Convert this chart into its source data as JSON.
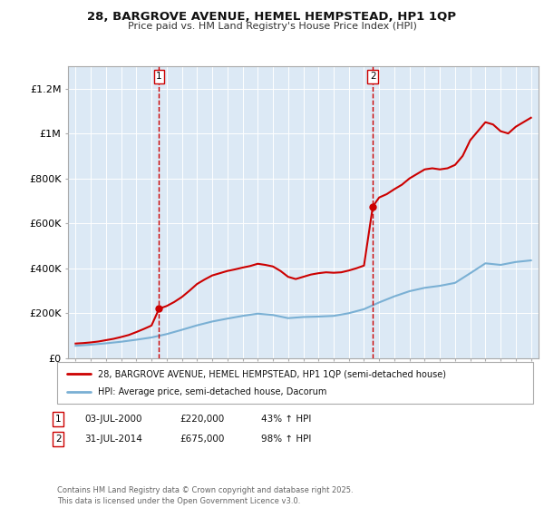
{
  "title": "28, BARGROVE AVENUE, HEMEL HEMPSTEAD, HP1 1QP",
  "subtitle": "Price paid vs. HM Land Registry's House Price Index (HPI)",
  "legend_line1": "28, BARGROVE AVENUE, HEMEL HEMPSTEAD, HP1 1QP (semi-detached house)",
  "legend_line2": "HPI: Average price, semi-detached house, Dacorum",
  "transaction1_date": 2000.5,
  "transaction1_price": 220000,
  "transaction1_label": "1",
  "transaction1_text1": "03-JUL-2000",
  "transaction1_text2": "£220,000",
  "transaction1_text3": "43% ↑ HPI",
  "transaction2_date": 2014.58,
  "transaction2_price": 675000,
  "transaction2_label": "2",
  "transaction2_text1": "31-JUL-2014",
  "transaction2_text2": "£675,000",
  "transaction2_text3": "98% ↑ HPI",
  "plot_bg": "#dce9f5",
  "red_line_color": "#cc0000",
  "blue_line_color": "#7ab0d4",
  "dashed_line_color": "#cc0000",
  "footer": "Contains HM Land Registry data © Crown copyright and database right 2025.\nThis data is licensed under the Open Government Licence v3.0.",
  "xlim": [
    1994.5,
    2025.5
  ],
  "ylim": [
    0,
    1300000
  ],
  "yticks": [
    0,
    200000,
    400000,
    600000,
    800000,
    1000000,
    1200000
  ],
  "ytick_labels": [
    "£0",
    "£200K",
    "£400K",
    "£600K",
    "£800K",
    "£1M",
    "£1.2M"
  ],
  "xticks": [
    1995,
    1996,
    1997,
    1998,
    1999,
    2000,
    2001,
    2002,
    2003,
    2004,
    2005,
    2006,
    2007,
    2008,
    2009,
    2010,
    2011,
    2012,
    2013,
    2014,
    2015,
    2016,
    2017,
    2018,
    2019,
    2020,
    2021,
    2022,
    2023,
    2024,
    2025
  ],
  "hpi_years": [
    1995,
    1996,
    1997,
    1998,
    1999,
    2000,
    2001,
    2002,
    2003,
    2004,
    2005,
    2006,
    2007,
    2008,
    2009,
    2010,
    2011,
    2012,
    2013,
    2014,
    2015,
    2016,
    2017,
    2018,
    2019,
    2020,
    2021,
    2022,
    2023,
    2024,
    2025
  ],
  "hpi_values": [
    55000,
    60000,
    66000,
    73000,
    82000,
    92000,
    107000,
    126000,
    146000,
    163000,
    176000,
    188000,
    198000,
    192000,
    178000,
    183000,
    185000,
    188000,
    200000,
    218000,
    248000,
    275000,
    298000,
    313000,
    322000,
    335000,
    378000,
    422000,
    415000,
    428000,
    435000
  ],
  "price_years": [
    1995.0,
    1995.5,
    1996.0,
    1996.5,
    1997.0,
    1997.5,
    1998.0,
    1998.5,
    1999.0,
    1999.5,
    2000.0,
    2000.5,
    2001.0,
    2001.5,
    2002.0,
    2002.5,
    2003.0,
    2003.5,
    2004.0,
    2004.5,
    2005.0,
    2005.5,
    2006.0,
    2006.5,
    2007.0,
    2007.5,
    2008.0,
    2008.5,
    2009.0,
    2009.5,
    2010.0,
    2010.5,
    2011.0,
    2011.5,
    2012.0,
    2012.5,
    2013.0,
    2013.5,
    2014.0,
    2014.58,
    2015.0,
    2015.5,
    2016.0,
    2016.5,
    2017.0,
    2017.5,
    2018.0,
    2018.5,
    2019.0,
    2019.5,
    2020.0,
    2020.5,
    2021.0,
    2021.5,
    2022.0,
    2022.5,
    2023.0,
    2023.5,
    2024.0,
    2024.5,
    2025.0
  ],
  "price_values": [
    65000,
    67000,
    70000,
    74000,
    80000,
    86000,
    94000,
    103000,
    116000,
    130000,
    145000,
    220000,
    232000,
    250000,
    272000,
    300000,
    330000,
    350000,
    368000,
    378000,
    388000,
    395000,
    403000,
    410000,
    420000,
    415000,
    408000,
    388000,
    362000,
    352000,
    362000,
    372000,
    378000,
    382000,
    380000,
    382000,
    390000,
    400000,
    412000,
    675000,
    715000,
    730000,
    752000,
    772000,
    800000,
    820000,
    840000,
    845000,
    840000,
    845000,
    860000,
    900000,
    970000,
    1010000,
    1050000,
    1040000,
    1010000,
    1000000,
    1030000,
    1050000,
    1070000
  ]
}
